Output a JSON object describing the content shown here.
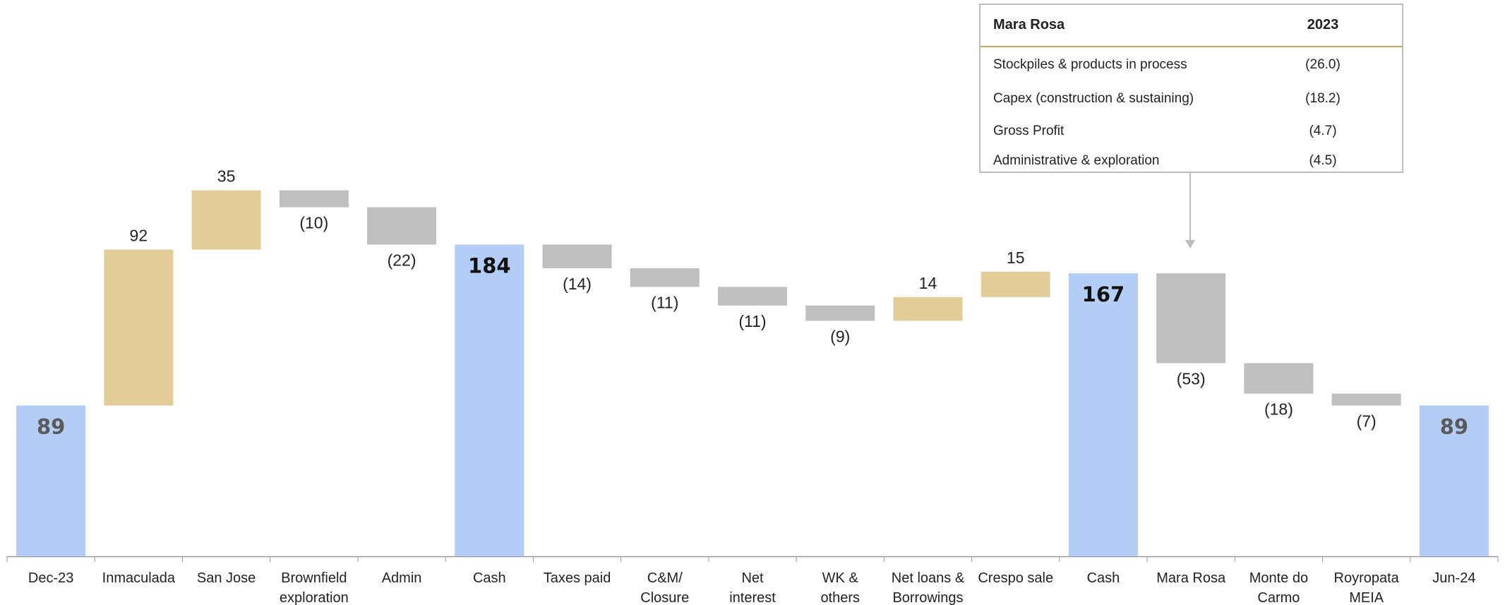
{
  "chart_data": {
    "type": "bar",
    "subtype": "waterfall",
    "categories": [
      "Dec-23",
      "Inmaculada",
      "San Jose",
      "Brownfield exploration",
      "Admin",
      "Cash",
      "Taxes paid",
      "C&M/ Closure",
      "Net interest",
      "WK & others",
      "Net loans & Borrowings",
      "Crespo sale",
      "Cash",
      "Mara Rosa",
      "Monte do Carmo",
      "Royropata MEIA",
      "Jun-24"
    ],
    "category_lines": [
      [
        "Dec-23"
      ],
      [
        "Inmaculada"
      ],
      [
        "San Jose"
      ],
      [
        "Brownfield",
        "exploration"
      ],
      [
        "Admin"
      ],
      [
        "Cash"
      ],
      [
        "Taxes paid"
      ],
      [
        "C&M/",
        "Closure"
      ],
      [
        "Net",
        "interest"
      ],
      [
        "WK &",
        "others"
      ],
      [
        "Net loans &",
        "Borrowings"
      ],
      [
        "Crespo sale"
      ],
      [
        "Cash"
      ],
      [
        "Mara Rosa"
      ],
      [
        "Monte do",
        "Carmo"
      ],
      [
        "Royropata",
        "MEIA"
      ],
      [
        "Jun-24"
      ]
    ],
    "values": [
      89,
      92,
      35,
      -10,
      -22,
      184,
      -14,
      -11,
      -11,
      -9,
      14,
      15,
      167,
      -53,
      -18,
      -7,
      89
    ],
    "kinds": [
      "total",
      "delta",
      "delta",
      "delta",
      "delta",
      "total",
      "delta",
      "delta",
      "delta",
      "delta",
      "delta",
      "delta",
      "total",
      "delta",
      "delta",
      "delta",
      "total"
    ],
    "value_labels": [
      "89",
      "92",
      "35",
      "(10)",
      "(22)",
      "184",
      "(14)",
      "(11)",
      "(11)",
      "(9)",
      "14",
      "15",
      "167",
      "(53)",
      "(18)",
      "(7)",
      "89"
    ],
    "ylim": [
      0,
      214
    ],
    "colors": {
      "total": "#b3cdf7",
      "increase": "#e2cc97",
      "decrease": "#bfbfbf",
      "total_label_dark": "#111111",
      "total_label_grey": "#5a5a5a",
      "axis": "#9a9a9a"
    },
    "title": "",
    "xlabel": "",
    "ylabel": "",
    "grid": false
  },
  "callout": {
    "title": "Mara Rosa",
    "year": "2023",
    "points_to": "Mara Rosa",
    "rows": [
      {
        "label": "Stockpiles & products in process",
        "value": "(26.0)"
      },
      {
        "label": "Capex (construction & sustaining)",
        "value": "(18.2)"
      },
      {
        "label": "Gross Profit",
        "value": "(4.7)"
      },
      {
        "label": "Administrative & exploration",
        "value": "(4.5)"
      }
    ],
    "border_color": "#bdbdbd",
    "accent_color": "#c8a85a"
  }
}
